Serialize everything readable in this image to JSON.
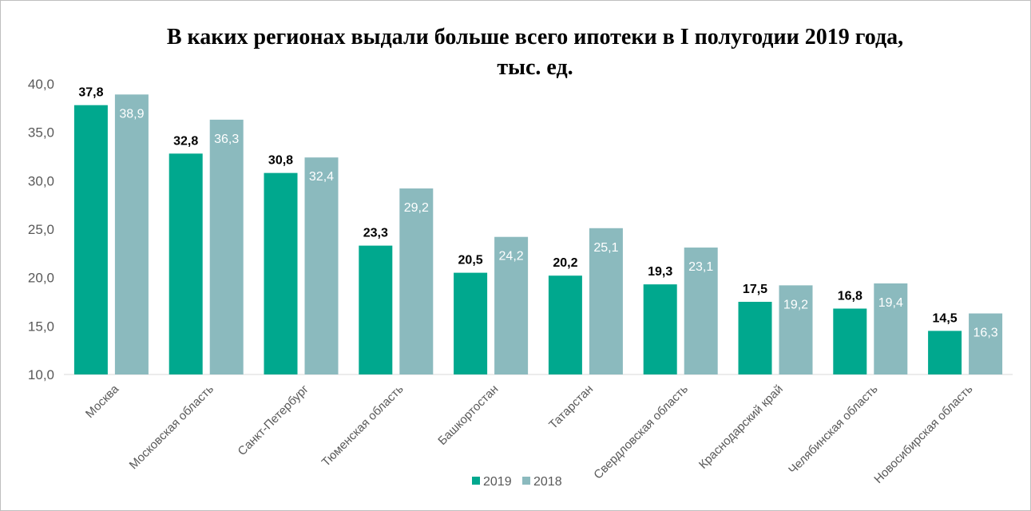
{
  "chart_data": {
    "type": "bar",
    "title_line1": "В каких регионах выдали больше всего ипотеки в I полугодии 2019 года,",
    "title_line2": "тыс. ед.",
    "categories": [
      "Москва",
      "Московская область",
      "Санкт-Петербург",
      "Тюменская область",
      "Башкортостан",
      "Татарстан",
      "Свердловская область",
      "Краснодарский край",
      "Челябинская область",
      "Новосибирская область"
    ],
    "series": [
      {
        "name": "2019",
        "color": "#00a88e",
        "values": [
          37.8,
          32.8,
          30.8,
          23.3,
          20.5,
          20.2,
          19.3,
          17.5,
          16.8,
          14.5
        ],
        "labels": [
          "37,8",
          "32,8",
          "30,8",
          "23,3",
          "20,5",
          "20,2",
          "19,3",
          "17,5",
          "16,8",
          "14,5"
        ]
      },
      {
        "name": "2018",
        "color": "#8bbabe",
        "values": [
          38.9,
          36.3,
          32.4,
          29.2,
          24.2,
          25.1,
          23.1,
          19.2,
          19.4,
          16.3
        ],
        "labels": [
          "38,9",
          "36,3",
          "32,4",
          "29,2",
          "24,2",
          "25,1",
          "23,1",
          "19,2",
          "19,4",
          "16,3"
        ]
      }
    ],
    "ylim": [
      10,
      40
    ],
    "yticks": [
      10,
      15,
      20,
      25,
      30,
      35,
      40
    ],
    "ytick_labels": [
      "10,0",
      "15,0",
      "20,0",
      "25,0",
      "30,0",
      "35,0",
      "40,0"
    ],
    "legend": "bottom",
    "grid": false
  }
}
